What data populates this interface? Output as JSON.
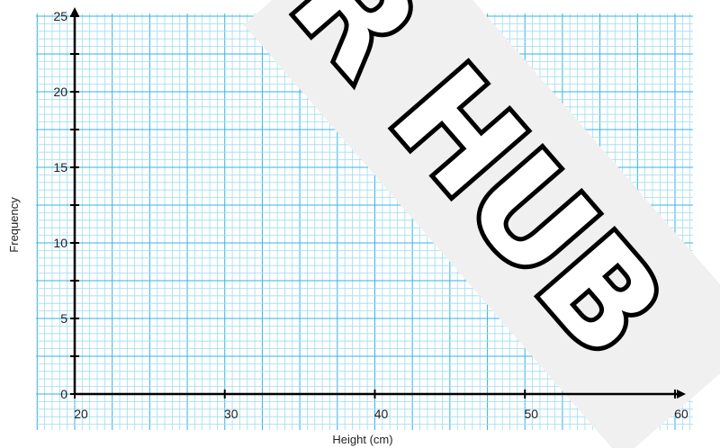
{
  "chart_data": {
    "type": "bar",
    "title": "",
    "xlabel": "Height  (cm)",
    "ylabel": "Frequency",
    "xlim": [
      20,
      60
    ],
    "ylim": [
      0,
      25
    ],
    "xticks": [
      20,
      30,
      40,
      50,
      60
    ],
    "yticks": [
      0,
      5,
      10,
      15,
      20,
      25
    ],
    "grid": true,
    "series": []
  },
  "colors": {
    "grid_minor": "#9fdcf2",
    "grid_major": "#35b3e6",
    "axis": "#000000",
    "watermark_fill": "#f0f0f0"
  },
  "watermark": {
    "text": "R HUB"
  }
}
